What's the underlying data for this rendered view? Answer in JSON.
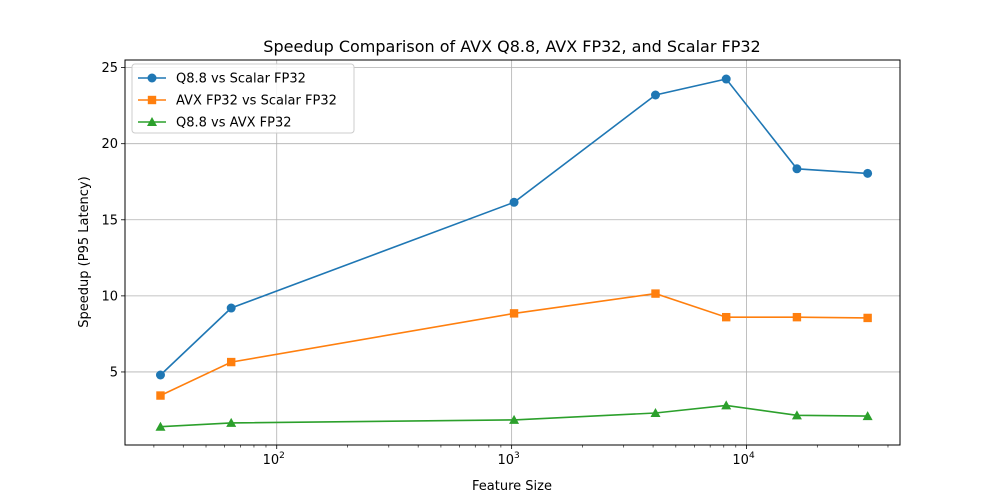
{
  "chart_data": {
    "type": "line",
    "title": "Speedup Comparison of AVX Q8.8, AVX FP32, and Scalar FP32",
    "xlabel": "Feature Size",
    "ylabel": "Speedup (P95 Latency)",
    "xscale": "log",
    "xlim": [
      22.6,
      45000
    ],
    "ylim": [
      0.2,
      25.5
    ],
    "grid": true,
    "legend_position": "top-left",
    "x": [
      32,
      64,
      1024,
      4096,
      8192,
      16384,
      32768
    ],
    "series": [
      {
        "name": "Q8.8 vs Scalar FP32",
        "color": "#1f77b4",
        "marker": "circle",
        "values": [
          4.8,
          9.2,
          16.15,
          23.2,
          24.25,
          18.35,
          18.05
        ]
      },
      {
        "name": "AVX FP32 vs Scalar FP32",
        "color": "#ff7f0e",
        "marker": "square",
        "values": [
          3.45,
          5.65,
          8.85,
          10.15,
          8.6,
          8.6,
          8.55
        ]
      },
      {
        "name": "Q8.8 vs AVX FP32",
        "color": "#2ca02c",
        "marker": "triangle",
        "values": [
          1.4,
          1.65,
          1.85,
          2.3,
          2.8,
          2.15,
          2.1
        ]
      }
    ],
    "y_ticks": [
      5,
      10,
      15,
      20,
      25
    ],
    "y_tick_labels": [
      "5",
      "10",
      "15",
      "20",
      "25"
    ],
    "x_major_ticks": [
      100,
      1000,
      10000
    ],
    "x_tick_labels": [
      {
        "base": "10",
        "exp": "2"
      },
      {
        "base": "10",
        "exp": "3"
      },
      {
        "base": "10",
        "exp": "4"
      }
    ]
  }
}
